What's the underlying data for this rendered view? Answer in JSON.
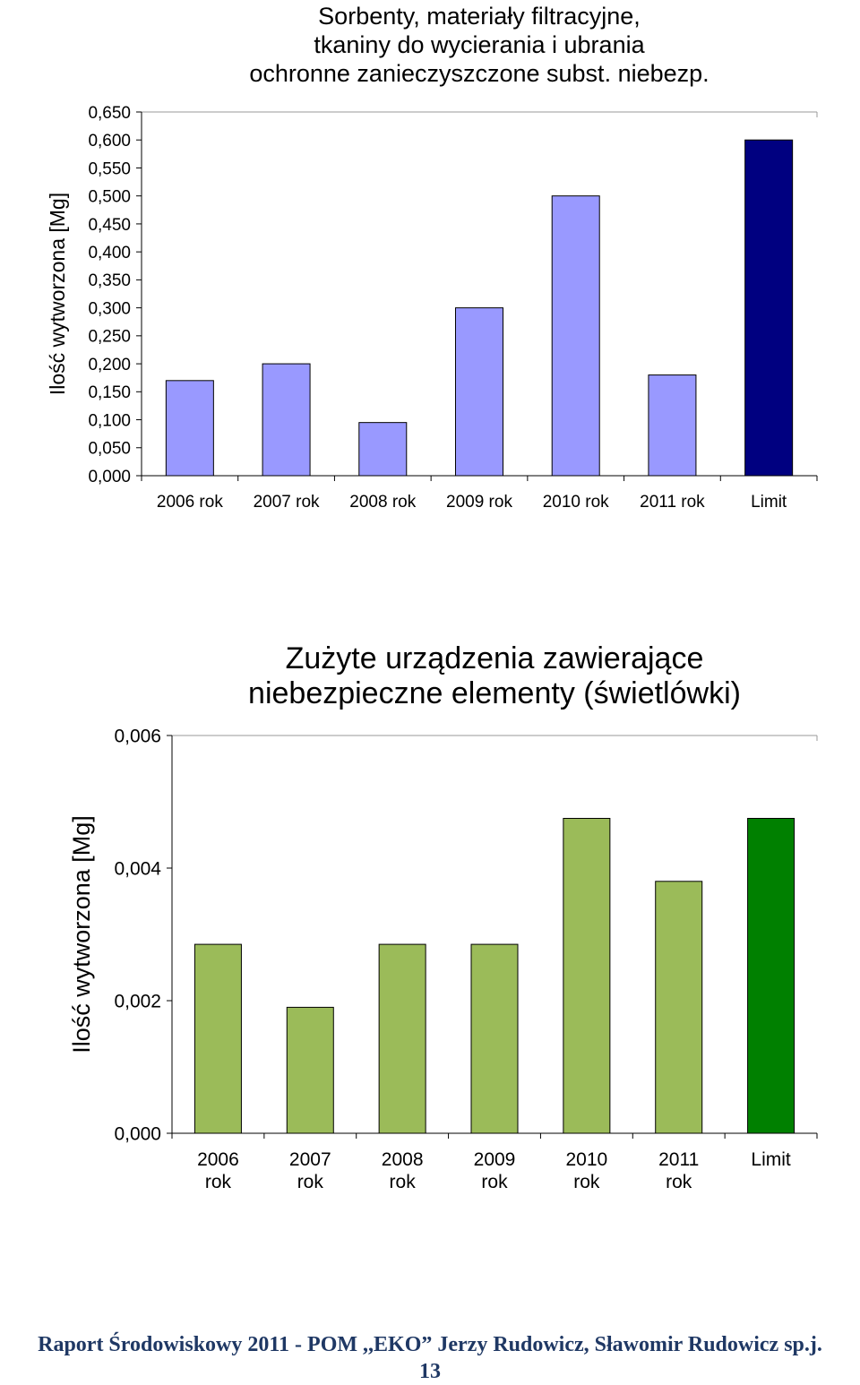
{
  "chart_data": [
    {
      "type": "bar",
      "title": "Sorbenty, materiały filtracyjne,\ntkaniny do wycierania i ubrania\nochronne zanieczyszczone subst. niebezp.",
      "ylabel": "Ilość wytworzona [Mg]",
      "xlabel": "",
      "categories": [
        "2006 rok",
        "2007 rok",
        "2008 rok",
        "2009 rok",
        "2010 rok",
        "2011 rok",
        "Limit"
      ],
      "values": [
        0.17,
        0.2,
        0.095,
        0.3,
        0.5,
        0.18,
        0.6
      ],
      "ylim": [
        0,
        0.65
      ],
      "yticks": [
        "0,000",
        "0,050",
        "0,100",
        "0,150",
        "0,200",
        "0,250",
        "0,300",
        "0,350",
        "0,400",
        "0,450",
        "0,500",
        "0,550",
        "0,600",
        "0,650"
      ],
      "colors": {
        "bar": "#9999ff",
        "limit": "#000080"
      },
      "grid": false
    },
    {
      "type": "bar",
      "title": "Zużyte urządzenia zawierające\nniebezpieczne elementy (świetlówki)",
      "ylabel": "Ilość wytworzona [Mg]",
      "xlabel": "",
      "categories": [
        "2006\nrok",
        "2007\nrok",
        "2008\nrok",
        "2009\nrok",
        "2010\nrok",
        "2011\nrok",
        "Limit"
      ],
      "values": [
        0.00285,
        0.0019,
        0.00285,
        0.00285,
        0.00475,
        0.0038,
        0.00475
      ],
      "ylim": [
        0,
        0.006
      ],
      "yticks": [
        "0,000",
        "0,002",
        "0,004",
        "0,006"
      ],
      "colors": {
        "bar": "#9bbb59",
        "limit": "#008000"
      },
      "grid": false
    }
  ],
  "footer": {
    "line1": "Raport Środowiskowy 2011 - POM ,,EKO” Jerzy Rudowicz, Sławomir Rudowicz sp.j.",
    "page": "13"
  }
}
